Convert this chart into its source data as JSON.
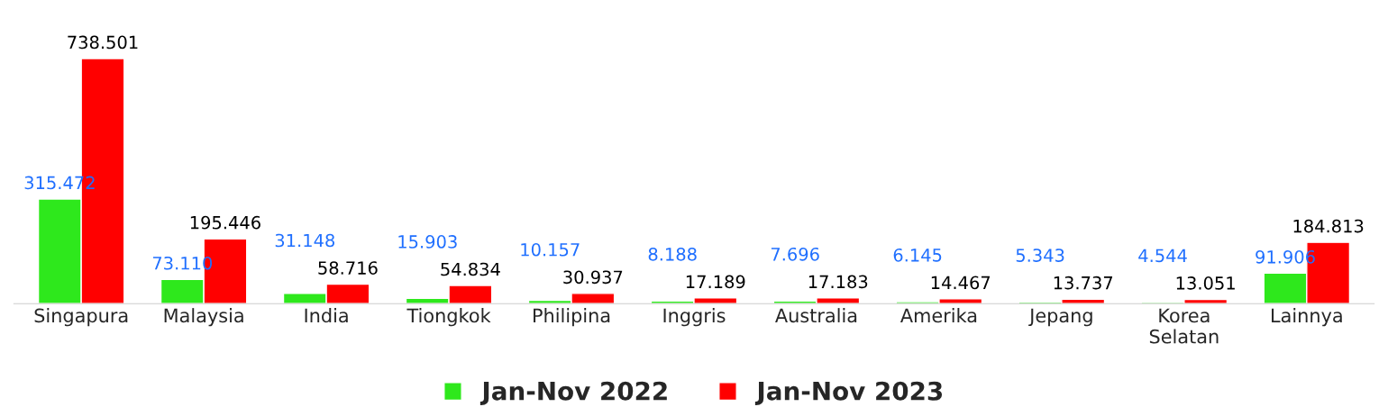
{
  "chart_data": {
    "type": "bar",
    "categories": [
      "Singapura",
      "Malaysia",
      "India",
      "Tiongkok",
      "Philipina",
      "Inggris",
      "Australia",
      "Amerika",
      "Jepang",
      "Korea\nSelatan",
      "Lainnya"
    ],
    "series": [
      {
        "name": "Jan-Nov 2022",
        "color": "#2ee81c",
        "values": [
          315.472,
          73.11,
          31.148,
          15.903,
          10.157,
          8.188,
          7.696,
          6.145,
          5.343,
          4.544,
          91.906
        ],
        "value_labels": [
          "315.472",
          "73.110",
          "31.148",
          "15.903",
          "10.157",
          "8.188",
          "7.696",
          "6.145",
          "5.343",
          "4.544",
          "91.906"
        ]
      },
      {
        "name": "Jan-Nov 2023",
        "color": "#ff0000",
        "values": [
          738.501,
          195.446,
          58.716,
          54.834,
          30.937,
          17.189,
          17.183,
          14.467,
          13.737,
          13.051,
          184.813
        ],
        "value_labels": [
          "738.501",
          "195.446",
          "58.716",
          "54.834",
          "30.937",
          "17.189",
          "17.183",
          "14.467",
          "13.737",
          "13.051",
          "184.813"
        ]
      }
    ],
    "data_labels": true,
    "legend": "bottom",
    "grid": false
  }
}
